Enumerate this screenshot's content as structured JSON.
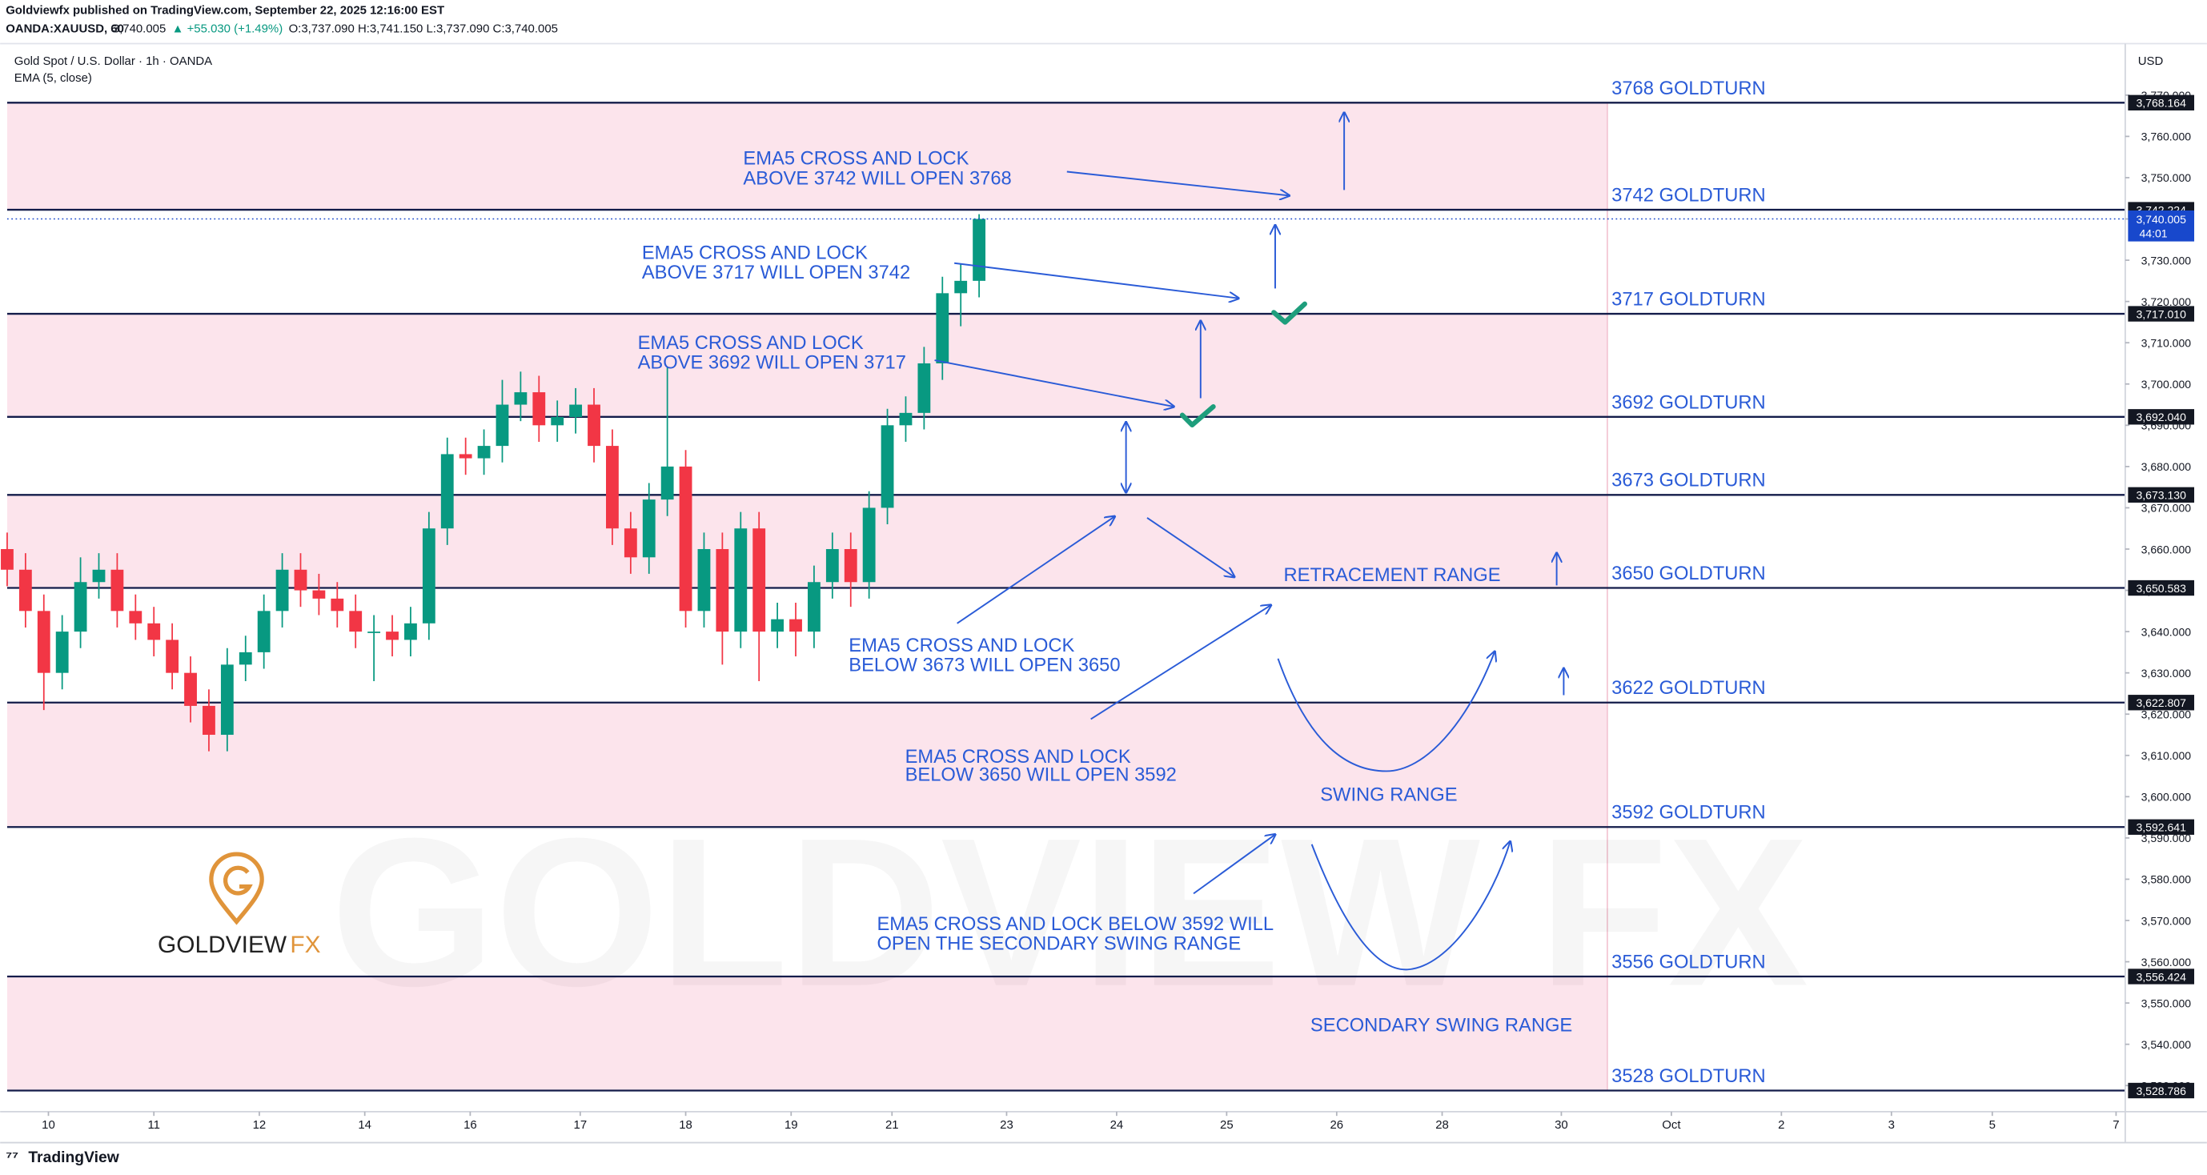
{
  "header": {
    "publisher": "Goldviewfx published on TradingView.com, September 22, 2025 12:16:00 EST",
    "symbol": "OANDA:XAUUSD, 60",
    "price": "3,740.005",
    "change": "▲ +55.030 (+1.49%)",
    "ohlc": "O:3,737.090 H:3,741.150 L:3,737.090 C:3,740.005"
  },
  "chart_data": {
    "type": "candlestick",
    "title": "Gold Spot / U.S. Dollar · 1h · OANDA",
    "indicator": "EMA (5, close)",
    "currency": "USD",
    "up_color": "#089981",
    "down_color": "#f23645",
    "x": [
      0,
      4,
      8,
      12,
      16,
      20,
      24,
      28,
      32,
      36,
      40,
      44,
      48,
      52,
      56,
      60,
      64,
      68,
      72,
      76,
      80,
      84,
      88,
      92,
      96,
      100,
      104,
      108,
      112,
      116,
      120,
      124,
      128,
      132,
      136,
      140,
      144,
      148,
      152,
      156,
      160,
      164,
      168,
      172,
      176,
      180,
      184,
      188,
      192,
      196,
      200,
      204,
      208,
      212
    ],
    "open": [
      3660,
      3655,
      3645,
      3630,
      3640,
      3652,
      3655,
      3645,
      3642,
      3638,
      3630,
      3622,
      3615,
      3632,
      3635,
      3645,
      3655,
      3650,
      3648,
      3645,
      3640,
      3640,
      3638,
      3642,
      3665,
      3683,
      3682,
      3685,
      3695,
      3698,
      3690,
      3692,
      3695,
      3685,
      3665,
      3658,
      3672,
      3680,
      3645,
      3660,
      3640,
      3665,
      3640,
      3643,
      3640,
      3652,
      3660,
      3652,
      3670,
      3690,
      3693,
      3705,
      3722,
      3725
    ],
    "high": [
      3664,
      3659,
      3649,
      3644,
      3658,
      3659,
      3659,
      3649,
      3646,
      3642,
      3634,
      3626,
      3636,
      3639,
      3649,
      3659,
      3659,
      3654,
      3652,
      3649,
      3644,
      3644,
      3646,
      3669,
      3687,
      3687,
      3689,
      3701,
      3703,
      3702,
      3696,
      3699,
      3699,
      3689,
      3669,
      3676,
      3704,
      3684,
      3664,
      3664,
      3669,
      3669,
      3647,
      3647,
      3656,
      3664,
      3664,
      3674,
      3694,
      3697,
      3709,
      3726,
      3729,
      3741.15
    ],
    "low": [
      3651,
      3641,
      3621,
      3626,
      3636,
      3648,
      3641,
      3638,
      3634,
      3626,
      3618,
      3611,
      3611,
      3628,
      3631,
      3641,
      3646,
      3644,
      3641,
      3636,
      3628,
      3634,
      3634,
      3638,
      3661,
      3678,
      3678,
      3681,
      3691,
      3686,
      3686,
      3688,
      3681,
      3661,
      3654,
      3654,
      3668,
      3641,
      3641,
      3632,
      3636,
      3628,
      3636,
      3634,
      3636,
      3648,
      3646,
      3648,
      3666,
      3686,
      3689,
      3701,
      3714,
      3721
    ],
    "close": [
      3655,
      3645,
      3630,
      3640,
      3652,
      3655,
      3645,
      3642,
      3638,
      3630,
      3622,
      3615,
      3632,
      3635,
      3645,
      3655,
      3650,
      3648,
      3645,
      3640,
      3640,
      3638,
      3642,
      3665,
      3683,
      3682,
      3685,
      3695,
      3698,
      3690,
      3692,
      3695,
      3685,
      3665,
      3658,
      3672,
      3680,
      3645,
      3660,
      3640,
      3665,
      3640,
      3643,
      3640,
      3652,
      3660,
      3652,
      3670,
      3690,
      3693,
      3705,
      3722,
      3725,
      3740.005
    ],
    "xlim": [
      0,
      462
    ],
    "xticks": [
      {
        "value": 9,
        "label": "10"
      },
      {
        "value": 32,
        "label": "11"
      },
      {
        "value": 55,
        "label": "12"
      },
      {
        "value": 78,
        "label": "14"
      },
      {
        "value": 101,
        "label": "16"
      },
      {
        "value": 125,
        "label": "17"
      },
      {
        "value": 148,
        "label": "18"
      },
      {
        "value": 171,
        "label": "19"
      },
      {
        "value": 193,
        "label": "21"
      },
      {
        "value": 218,
        "label": "23"
      },
      {
        "value": 242,
        "label": "24"
      },
      {
        "value": 266,
        "label": "25"
      },
      {
        "value": 290,
        "label": "26"
      },
      {
        "value": 313,
        "label": "28"
      },
      {
        "value": 339,
        "label": "30"
      },
      {
        "value": 363,
        "label": "Oct"
      },
      {
        "value": 387,
        "label": "2"
      },
      {
        "value": 411,
        "label": "3"
      },
      {
        "value": 433,
        "label": "5"
      },
      {
        "value": 460,
        "label": "7"
      }
    ],
    "ylim": [
      3523.67,
      3782.14
    ],
    "yticks": [
      {
        "value": 3530,
        "label": "3,530.000"
      },
      {
        "value": 3540,
        "label": "3,540.000"
      },
      {
        "value": 3550,
        "label": "3,550.000"
      },
      {
        "value": 3560,
        "label": "3,560.000"
      },
      {
        "value": 3570,
        "label": "3,570.000"
      },
      {
        "value": 3580,
        "label": "3,580.000"
      },
      {
        "value": 3590,
        "label": "3,590.000"
      },
      {
        "value": 3600,
        "label": "3,600.000"
      },
      {
        "value": 3610,
        "label": "3,610.000"
      },
      {
        "value": 3620,
        "label": "3,620.000"
      },
      {
        "value": 3630,
        "label": "3,630.000"
      },
      {
        "value": 3640,
        "label": "3,640.000"
      },
      {
        "value": 3650,
        "label": "3,650.000"
      },
      {
        "value": 3660,
        "label": "3,660.000"
      },
      {
        "value": 3670,
        "label": "3,670.000"
      },
      {
        "value": 3680,
        "label": "3,680.000"
      },
      {
        "value": 3690,
        "label": "3,690.000"
      },
      {
        "value": 3700,
        "label": "3,700.000"
      },
      {
        "value": 3710,
        "label": "3,710.000"
      },
      {
        "value": 3720,
        "label": "3,720.000"
      },
      {
        "value": 3730,
        "label": "3,730.000"
      },
      {
        "value": 3740,
        "label": "3,740.000"
      },
      {
        "value": 3750,
        "label": "3,750.000"
      },
      {
        "value": 3760,
        "label": "3,760.000"
      },
      {
        "value": 3770,
        "label": "3,770.000"
      }
    ],
    "grid": false,
    "levels": [
      {
        "value": 3768.164,
        "label": "3,768.164",
        "text": "3768 GOLDTURN"
      },
      {
        "value": 3742.224,
        "label": "3,742.224",
        "text": "3742 GOLDTURN"
      },
      {
        "value": 3717.01,
        "label": "3,717.010",
        "text": "3717 GOLDTURN"
      },
      {
        "value": 3692.04,
        "label": "3,692.040",
        "text": "3692 GOLDTURN"
      },
      {
        "value": 3673.13,
        "label": "3,673.130",
        "text": "3673 GOLDTURN"
      },
      {
        "value": 3650.583,
        "label": "3,650.583",
        "text": "3650 GOLDTURN"
      },
      {
        "value": 3622.807,
        "label": "3,622.807",
        "text": "3622 GOLDTURN"
      },
      {
        "value": 3592.641,
        "label": "3,592.641",
        "text": "3592 GOLDTURN"
      },
      {
        "value": 3556.424,
        "label": "3,556.424",
        "text": "3556 GOLDTURN"
      },
      {
        "value": 3528.786,
        "label": "3,528.786",
        "text": "3528 GOLDTURN"
      }
    ],
    "level_color": "#131c4a",
    "zone_color": "#fce4ec",
    "last": {
      "value": 3740.005,
      "label": "3,740.005",
      "countdown": "44:01",
      "color": "#1848cc"
    },
    "annotations": [
      {
        "lines": [
          "EMA5 CROSS AND LOCK",
          "ABOVE 3742 WILL OPEN 3768"
        ]
      },
      {
        "lines": [
          "EMA5 CROSS AND LOCK",
          "ABOVE 3717 WILL OPEN 3742"
        ]
      },
      {
        "lines": [
          "EMA5 CROSS AND LOCK",
          "ABOVE 3692 WILL OPEN 3717"
        ]
      },
      {
        "lines": [
          "EMA5 CROSS AND LOCK",
          "BELOW 3673 WILL OPEN 3650"
        ]
      },
      {
        "lines": [
          "EMA5 CROSS AND LOCK",
          "BELOW 3650 WILL OPEN 3592"
        ]
      },
      {
        "lines": [
          "EMA5 CROSS AND LOCK BELOW 3592 WILL",
          "OPEN THE SECONDARY SWING RANGE"
        ]
      },
      {
        "lines": [
          "RETRACEMENT RANGE"
        ]
      },
      {
        "lines": [
          "SWING RANGE"
        ]
      },
      {
        "lines": [
          "SECONDARY SWING RANGE"
        ]
      }
    ]
  },
  "watermark": "GOLDVIEW FX",
  "logo": {
    "text": "GOLDVIEW",
    "accent": "FX"
  },
  "footer": "TradingView"
}
